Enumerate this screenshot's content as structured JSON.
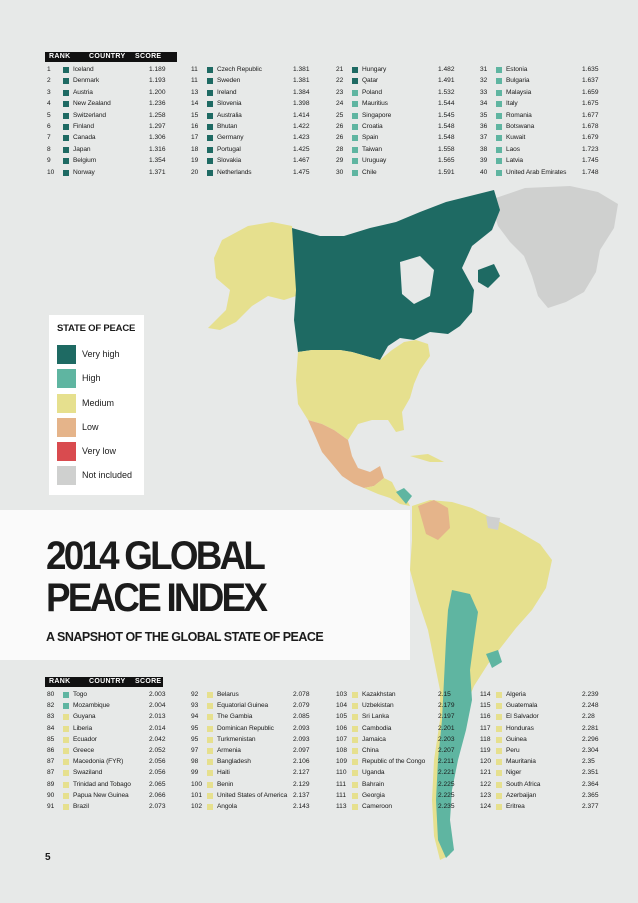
{
  "headers": {
    "rank": "RANK",
    "country": "COUNTRY",
    "score": "SCORE"
  },
  "colors": {
    "very_high": "#1e6a63",
    "high": "#5fb5a1",
    "medium": "#e6e08e",
    "low": "#e5b48a",
    "very_low": "#d94b4f",
    "not_included": "#cfd0cf"
  },
  "legend": {
    "title": "STATE OF PEACE",
    "items": [
      {
        "label": "Very high",
        "color": "#1e6a63"
      },
      {
        "label": "High",
        "color": "#5fb5a1"
      },
      {
        "label": "Medium",
        "color": "#e6e08e"
      },
      {
        "label": "Low",
        "color": "#e5b48a"
      },
      {
        "label": "Very low",
        "color": "#d94b4f"
      },
      {
        "label": "Not included",
        "color": "#cfd0cf"
      }
    ]
  },
  "title": {
    "line1": "2014 GLOBAL",
    "line2": "PEACE INDEX",
    "subtitle": "A SNAPSHOT OF THE GLOBAL STATE OF PEACE"
  },
  "page_number": "5",
  "top_table": [
    [
      {
        "rank": "1",
        "country": "Iceland",
        "score": "1.189",
        "level": "very_high"
      },
      {
        "rank": "2",
        "country": "Denmark",
        "score": "1.193",
        "level": "very_high"
      },
      {
        "rank": "3",
        "country": "Austria",
        "score": "1.200",
        "level": "very_high"
      },
      {
        "rank": "4",
        "country": "New Zealand",
        "score": "1.236",
        "level": "very_high"
      },
      {
        "rank": "5",
        "country": "Switzerland",
        "score": "1.258",
        "level": "very_high"
      },
      {
        "rank": "6",
        "country": "Finland",
        "score": "1.297",
        "level": "very_high"
      },
      {
        "rank": "7",
        "country": "Canada",
        "score": "1.306",
        "level": "very_high"
      },
      {
        "rank": "8",
        "country": "Japan",
        "score": "1.316",
        "level": "very_high"
      },
      {
        "rank": "9",
        "country": "Belgium",
        "score": "1.354",
        "level": "very_high"
      },
      {
        "rank": "10",
        "country": "Norway",
        "score": "1.371",
        "level": "very_high"
      }
    ],
    [
      {
        "rank": "11",
        "country": "Czech Republic",
        "score": "1.381",
        "level": "very_high"
      },
      {
        "rank": "11",
        "country": "Sweden",
        "score": "1.381",
        "level": "very_high"
      },
      {
        "rank": "13",
        "country": "Ireland",
        "score": "1.384",
        "level": "very_high"
      },
      {
        "rank": "14",
        "country": "Slovenia",
        "score": "1.398",
        "level": "very_high"
      },
      {
        "rank": "15",
        "country": "Australia",
        "score": "1.414",
        "level": "very_high"
      },
      {
        "rank": "16",
        "country": "Bhutan",
        "score": "1.422",
        "level": "very_high"
      },
      {
        "rank": "17",
        "country": "Germany",
        "score": "1.423",
        "level": "very_high"
      },
      {
        "rank": "18",
        "country": "Portugal",
        "score": "1.425",
        "level": "very_high"
      },
      {
        "rank": "19",
        "country": "Slovakia",
        "score": "1.467",
        "level": "very_high"
      },
      {
        "rank": "20",
        "country": "Netherlands",
        "score": "1.475",
        "level": "very_high"
      }
    ],
    [
      {
        "rank": "21",
        "country": "Hungary",
        "score": "1.482",
        "level": "very_high"
      },
      {
        "rank": "22",
        "country": "Qatar",
        "score": "1.491",
        "level": "very_high"
      },
      {
        "rank": "23",
        "country": "Poland",
        "score": "1.532",
        "level": "high"
      },
      {
        "rank": "24",
        "country": "Mauritius",
        "score": "1.544",
        "level": "high"
      },
      {
        "rank": "25",
        "country": "Singapore",
        "score": "1.545",
        "level": "high"
      },
      {
        "rank": "26",
        "country": "Croatia",
        "score": "1.548",
        "level": "high"
      },
      {
        "rank": "26",
        "country": "Spain",
        "score": "1.548",
        "level": "high"
      },
      {
        "rank": "28",
        "country": "Taiwan",
        "score": "1.558",
        "level": "high"
      },
      {
        "rank": "29",
        "country": "Uruguay",
        "score": "1.565",
        "level": "high"
      },
      {
        "rank": "30",
        "country": "Chile",
        "score": "1.591",
        "level": "high"
      }
    ],
    [
      {
        "rank": "31",
        "country": "Estonia",
        "score": "1.635",
        "level": "high"
      },
      {
        "rank": "32",
        "country": "Bulgaria",
        "score": "1.637",
        "level": "high"
      },
      {
        "rank": "33",
        "country": "Malaysia",
        "score": "1.659",
        "level": "high"
      },
      {
        "rank": "34",
        "country": "Italy",
        "score": "1.675",
        "level": "high"
      },
      {
        "rank": "35",
        "country": "Romania",
        "score": "1.677",
        "level": "high"
      },
      {
        "rank": "36",
        "country": "Botswana",
        "score": "1.678",
        "level": "high"
      },
      {
        "rank": "37",
        "country": "Kuwait",
        "score": "1.679",
        "level": "high"
      },
      {
        "rank": "38",
        "country": "Laos",
        "score": "1.723",
        "level": "high"
      },
      {
        "rank": "39",
        "country": "Latvia",
        "score": "1.745",
        "level": "high"
      },
      {
        "rank": "40",
        "country": "United Arab Emirates",
        "score": "1.748",
        "level": "high"
      }
    ]
  ],
  "bottom_table": [
    [
      {
        "rank": "80",
        "country": "Togo",
        "score": "2.003",
        "level": "high"
      },
      {
        "rank": "82",
        "country": "Mozambique",
        "score": "2.004",
        "level": "high"
      },
      {
        "rank": "83",
        "country": "Guyana",
        "score": "2.013",
        "level": "medium"
      },
      {
        "rank": "84",
        "country": "Liberia",
        "score": "2.014",
        "level": "medium"
      },
      {
        "rank": "85",
        "country": "Ecuador",
        "score": "2.042",
        "level": "medium"
      },
      {
        "rank": "86",
        "country": "Greece",
        "score": "2.052",
        "level": "medium"
      },
      {
        "rank": "87",
        "country": "Macedonia (FYR)",
        "score": "2.056",
        "level": "medium"
      },
      {
        "rank": "87",
        "country": "Swaziland",
        "score": "2.056",
        "level": "medium"
      },
      {
        "rank": "89",
        "country": "Trinidad and Tobago",
        "score": "2.065",
        "level": "medium"
      },
      {
        "rank": "90",
        "country": "Papua New Guinea",
        "score": "2.066",
        "level": "medium"
      },
      {
        "rank": "91",
        "country": "Brazil",
        "score": "2.073",
        "level": "medium"
      }
    ],
    [
      {
        "rank": "92",
        "country": "Belarus",
        "score": "2.078",
        "level": "medium"
      },
      {
        "rank": "93",
        "country": "Equatorial Guinea",
        "score": "2.079",
        "level": "medium"
      },
      {
        "rank": "94",
        "country": "The Gambia",
        "score": "2.085",
        "level": "medium"
      },
      {
        "rank": "95",
        "country": "Dominican Republic",
        "score": "2.093",
        "level": "medium"
      },
      {
        "rank": "95",
        "country": "Turkmenistan",
        "score": "2.093",
        "level": "medium"
      },
      {
        "rank": "97",
        "country": "Armenia",
        "score": "2.097",
        "level": "medium"
      },
      {
        "rank": "98",
        "country": "Bangladesh",
        "score": "2.106",
        "level": "medium"
      },
      {
        "rank": "99",
        "country": "Haiti",
        "score": "2.127",
        "level": "medium"
      },
      {
        "rank": "100",
        "country": "Benin",
        "score": "2.129",
        "level": "medium"
      },
      {
        "rank": "101",
        "country": "United States of America",
        "score": "2.137",
        "level": "medium"
      },
      {
        "rank": "102",
        "country": "Angola",
        "score": "2.143",
        "level": "medium"
      }
    ],
    [
      {
        "rank": "103",
        "country": "Kazakhstan",
        "score": "2.15",
        "level": "medium"
      },
      {
        "rank": "104",
        "country": "Uzbekistan",
        "score": "2.179",
        "level": "medium"
      },
      {
        "rank": "105",
        "country": "Sri Lanka",
        "score": "2.197",
        "level": "medium"
      },
      {
        "rank": "106",
        "country": "Cambodia",
        "score": "2.201",
        "level": "medium"
      },
      {
        "rank": "107",
        "country": "Jamaica",
        "score": "2.203",
        "level": "medium"
      },
      {
        "rank": "108",
        "country": "China",
        "score": "2.207",
        "level": "medium"
      },
      {
        "rank": "109",
        "country": "Republic of the Congo",
        "score": "2.211",
        "level": "medium"
      },
      {
        "rank": "110",
        "country": "Uganda",
        "score": "2.221",
        "level": "medium"
      },
      {
        "rank": "111",
        "country": "Bahrain",
        "score": "2.225",
        "level": "medium"
      },
      {
        "rank": "111",
        "country": "Georgia",
        "score": "2.225",
        "level": "medium"
      },
      {
        "rank": "113",
        "country": "Cameroon",
        "score": "2.235",
        "level": "medium"
      }
    ],
    [
      {
        "rank": "114",
        "country": "Algeria",
        "score": "2.239",
        "level": "medium"
      },
      {
        "rank": "115",
        "country": "Guatemala",
        "score": "2.248",
        "level": "medium"
      },
      {
        "rank": "116",
        "country": "El Salvador",
        "score": "2.28",
        "level": "medium"
      },
      {
        "rank": "117",
        "country": "Honduras",
        "score": "2.281",
        "level": "medium"
      },
      {
        "rank": "118",
        "country": "Guinea",
        "score": "2.296",
        "level": "medium"
      },
      {
        "rank": "119",
        "country": "Peru",
        "score": "2.304",
        "level": "medium"
      },
      {
        "rank": "120",
        "country": "Mauritania",
        "score": "2.35",
        "level": "medium"
      },
      {
        "rank": "121",
        "country": "Niger",
        "score": "2.351",
        "level": "medium"
      },
      {
        "rank": "122",
        "country": "South Africa",
        "score": "2.364",
        "level": "medium"
      },
      {
        "rank": "123",
        "country": "Azerbaijan",
        "score": "2.365",
        "level": "medium"
      },
      {
        "rank": "124",
        "country": "Eritrea",
        "score": "2.377",
        "level": "medium"
      }
    ]
  ]
}
